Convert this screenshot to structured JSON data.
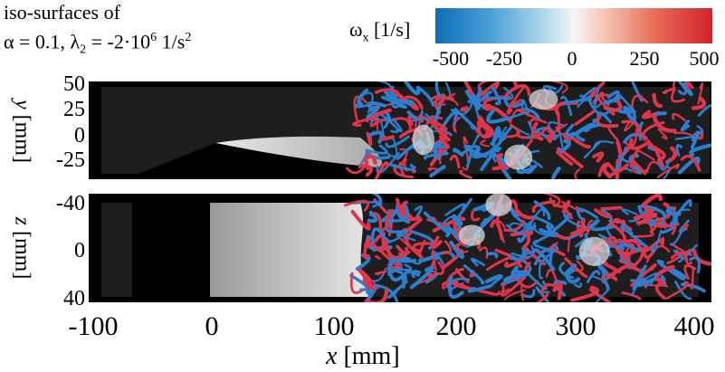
{
  "title": {
    "line1": "iso-surfaces of",
    "line2_alpha": "α = 0.1, ",
    "line2_lambda": "λ",
    "line2_lambda_sub": "2",
    "line2_rest": " = -2·10",
    "line2_exp": "6",
    "line2_unit": " 1/s",
    "line2_unit_exp": "2"
  },
  "colorbar": {
    "symbol": "ω",
    "symbol_sub": "x",
    "unit": " [1/s]",
    "ticks": [
      "-500",
      "-250",
      "0",
      "250",
      "500"
    ],
    "colors": {
      "neg": "#1f6fb8",
      "mid": "#f4f4f4",
      "pos": "#d62a2a"
    }
  },
  "top_panel": {
    "ylabel_var": "y",
    "ylabel_unit": "[mm]",
    "yticks": [
      "50",
      "25",
      "0",
      "-25"
    ]
  },
  "bottom_panel": {
    "zlabel_var": "z",
    "zlabel_unit": "[mm]",
    "zticks": [
      "-40",
      "0",
      "40"
    ]
  },
  "x_axis": {
    "label_var": "x",
    "label_unit": " [mm]",
    "ticks": [
      "-100",
      "0",
      "100",
      "200",
      "300",
      "400"
    ]
  },
  "vortex_colors": {
    "blue": "#2a7fd0",
    "red": "#e0344a",
    "white": "#d8d8d8"
  }
}
